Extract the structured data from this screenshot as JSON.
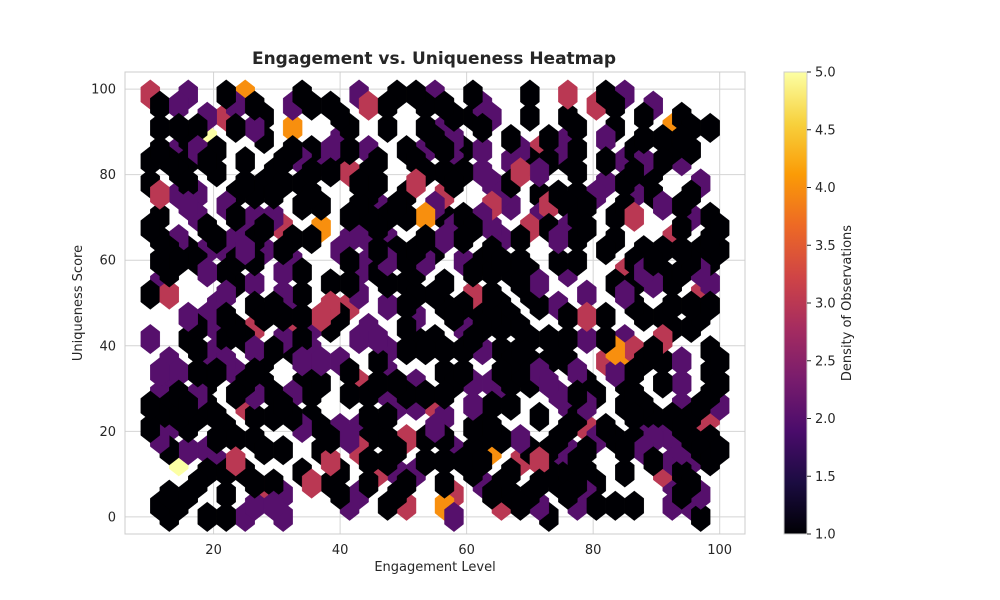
{
  "chart_data": {
    "type": "heatmap",
    "subtype": "hexbin",
    "title": "Engagement vs. Uniqueness Heatmap",
    "xlabel": "Engagement Level",
    "ylabel": "Uniqueness Score",
    "xlim": [
      6,
      104
    ],
    "ylim": [
      -4,
      104
    ],
    "xticks": [
      "20",
      "40",
      "60",
      "80",
      "100"
    ],
    "xtick_values": [
      20,
      40,
      60,
      80,
      100
    ],
    "yticks": [
      "0",
      "20",
      "40",
      "60",
      "80",
      "100"
    ],
    "ytick_values": [
      0,
      20,
      40,
      60,
      80,
      100
    ],
    "grid": true,
    "colorbar": {
      "label": "Density of Observations",
      "min": 1.0,
      "max": 5.0,
      "ticks": [
        "1.0",
        "1.5",
        "2.0",
        "2.5",
        "3.0",
        "3.5",
        "4.0",
        "4.5",
        "5.0"
      ],
      "tick_values": [
        1.0,
        1.5,
        2.0,
        2.5,
        3.0,
        3.5,
        4.0,
        4.5,
        5.0
      ],
      "colormap": "inferno",
      "colors": [
        "#000004",
        "#1b0c41",
        "#4a0c6b",
        "#781c6d",
        "#a52c60",
        "#cf4446",
        "#ed6925",
        "#fb9b06",
        "#f7d13d",
        "#fcffa4"
      ]
    },
    "hexbin": {
      "gridsize": 30,
      "xmin": 10,
      "xmax": 100,
      "ymin": 0,
      "ymax": 100,
      "min_count": 1,
      "seed": 7,
      "n_points": 1000
    }
  }
}
